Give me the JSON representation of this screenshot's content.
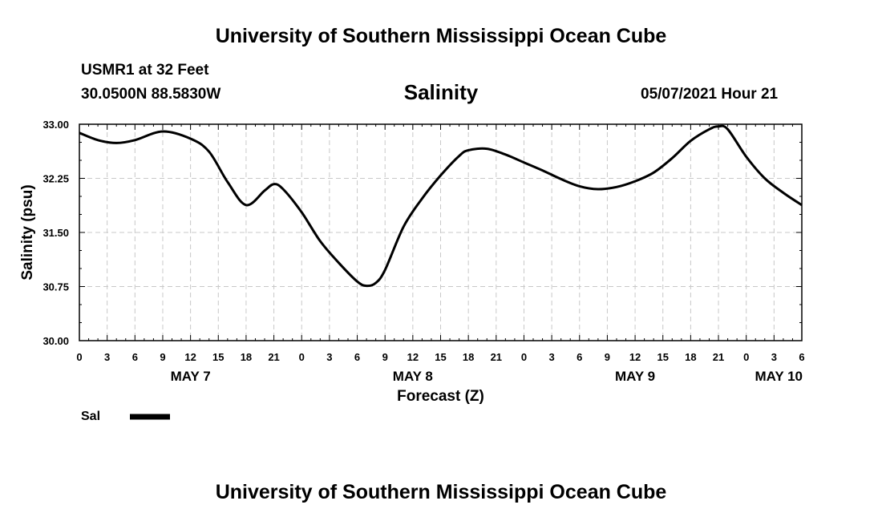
{
  "header": {
    "title_top": "University of Southern Mississippi Ocean Cube",
    "station": "USMR1 at 32 Feet",
    "coords": "30.0500N  88.5830W",
    "chart_title": "Salinity",
    "datetime": "05/07/2021 Hour 21",
    "title_bottom": "University of Southern Mississippi Ocean Cube"
  },
  "legend": {
    "label": "Sal",
    "color": "#000000"
  },
  "chart_data": {
    "type": "line",
    "title": "Salinity",
    "xlabel": "Forecast (Z)",
    "ylabel": "Salinity (psu)",
    "ylim": [
      30.0,
      33.0
    ],
    "xlim": [
      0,
      78
    ],
    "grid": true,
    "y_ticks": [
      "30.00",
      "30.75",
      "31.50",
      "32.25",
      "33.00"
    ],
    "x_ticks": [
      "0",
      "3",
      "6",
      "9",
      "12",
      "15",
      "18",
      "21",
      "0",
      "3",
      "6",
      "9",
      "12",
      "15",
      "18",
      "21",
      "0",
      "3",
      "6",
      "9",
      "12",
      "15",
      "18",
      "21",
      "0",
      "3",
      "6"
    ],
    "day_labels": [
      {
        "label": "MAY 7",
        "hour": 12
      },
      {
        "label": "MAY 8",
        "hour": 36
      },
      {
        "label": "MAY 9",
        "hour": 60
      },
      {
        "label": "MAY 10",
        "hour": 78
      }
    ],
    "series": [
      {
        "name": "Sal",
        "x": [
          0,
          2,
          4,
          6,
          9,
          12,
          14,
          16,
          18,
          20,
          21,
          22,
          24,
          26,
          28,
          30,
          31,
          32,
          33,
          35,
          37,
          39,
          41,
          42,
          44,
          46,
          48,
          50,
          52,
          54,
          56,
          58,
          60,
          62,
          64,
          66,
          68,
          69,
          70,
          72,
          74,
          76,
          78
        ],
        "values": [
          32.88,
          32.78,
          32.74,
          32.78,
          32.9,
          32.8,
          32.62,
          32.2,
          31.88,
          32.08,
          32.17,
          32.1,
          31.78,
          31.38,
          31.08,
          30.82,
          30.76,
          30.8,
          30.98,
          31.58,
          31.97,
          32.29,
          32.56,
          32.64,
          32.66,
          32.58,
          32.47,
          32.36,
          32.24,
          32.14,
          32.1,
          32.13,
          32.21,
          32.33,
          32.53,
          32.77,
          32.93,
          32.97,
          32.93,
          32.55,
          32.25,
          32.05,
          31.88
        ]
      }
    ]
  }
}
